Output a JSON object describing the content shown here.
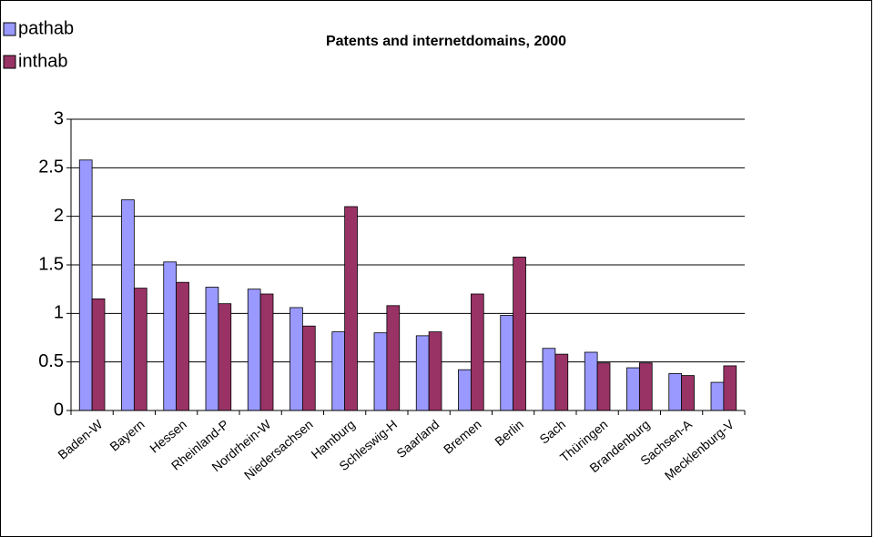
{
  "chart_data": {
    "type": "bar",
    "title": "Patents and internetdomains, 2000",
    "categories": [
      "Baden-W",
      "Bayern",
      "Hessen",
      "Rheinland-P",
      "Nordrhein-W",
      "Niedersachsen",
      "Hamburg",
      "Schleswig-H",
      "Saarland",
      "Bremen",
      "Berlin",
      "Sach",
      "Thüringen",
      "Brandenburg",
      "Sachsen-A",
      "Mecklenburg-V"
    ],
    "series": [
      {
        "name": "pathab",
        "color": "#9999ff",
        "values": [
          2.58,
          2.17,
          1.53,
          1.27,
          1.25,
          1.06,
          0.81,
          0.8,
          0.77,
          0.42,
          0.98,
          0.64,
          0.6,
          0.44,
          0.38,
          0.29
        ]
      },
      {
        "name": "inthab",
        "color": "#993366",
        "values": [
          1.15,
          1.26,
          1.32,
          1.1,
          1.2,
          0.87,
          2.1,
          1.08,
          0.81,
          1.2,
          1.58,
          0.58,
          0.49,
          0.49,
          0.36,
          0.46
        ]
      }
    ],
    "ylim": [
      0,
      3
    ],
    "yticks": [
      0,
      0.5,
      1,
      1.5,
      2,
      2.5,
      3
    ],
    "grid": true,
    "legend": "top-left"
  }
}
